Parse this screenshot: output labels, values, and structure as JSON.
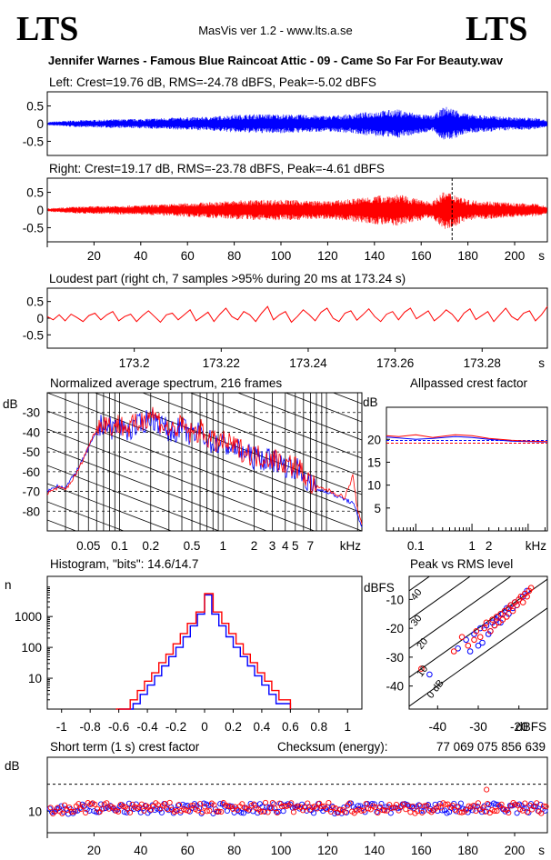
{
  "header": {
    "logo_left": "LTS",
    "logo_right": "LTS",
    "app_title": "MasVis ver 1.2 - www.lts.a.se",
    "filename": "Jennifer Warnes - Famous Blue Raincoat Attic - 09 - Came So Far For Beauty.wav"
  },
  "colors": {
    "left": "#0000ff",
    "right": "#ff0000",
    "grid": "#000000"
  },
  "chart_data": [
    {
      "id": "left",
      "type": "line",
      "title": "Left: Crest=19.76 dB, RMS=-24.78 dBFS, Peak=-5.02 dBFS",
      "ytick_labels": [
        "0.5",
        "0",
        "-0.5"
      ],
      "yticks": [
        0.5,
        0,
        -0.5
      ],
      "ylim": [
        -0.9,
        0.9
      ],
      "xlim": [
        0,
        214
      ],
      "envelope_times": [
        0,
        10,
        20,
        30,
        40,
        50,
        60,
        70,
        80,
        90,
        100,
        110,
        120,
        130,
        140,
        150,
        160,
        165,
        170,
        175,
        180,
        190,
        200,
        210,
        214
      ],
      "envelope_amp": [
        0.05,
        0.1,
        0.12,
        0.14,
        0.15,
        0.18,
        0.2,
        0.22,
        0.28,
        0.3,
        0.3,
        0.28,
        0.25,
        0.3,
        0.4,
        0.45,
        0.3,
        0.25,
        0.55,
        0.45,
        0.3,
        0.25,
        0.2,
        0.18,
        0.1
      ]
    },
    {
      "id": "right",
      "type": "line",
      "title": "Right: Crest=19.17 dB, RMS=-23.78 dBFS, Peak=-4.61 dBFS",
      "ytick_labels": [
        "0.5",
        "0",
        "-0.5"
      ],
      "yticks": [
        0.5,
        0,
        -0.5
      ],
      "ylim": [
        -0.9,
        0.9
      ],
      "xlim": [
        0,
        214
      ],
      "xtick_labels": [
        "20",
        "40",
        "60",
        "80",
        "100",
        "120",
        "140",
        "160",
        "180",
        "200"
      ],
      "xticks": [
        20,
        40,
        60,
        80,
        100,
        120,
        140,
        160,
        180,
        200
      ],
      "xunit": "s",
      "marker_time": 173.24,
      "envelope_times": [
        0,
        10,
        20,
        30,
        40,
        50,
        60,
        70,
        80,
        90,
        100,
        110,
        120,
        130,
        140,
        150,
        160,
        165,
        170,
        175,
        180,
        190,
        200,
        210,
        214
      ],
      "envelope_amp": [
        0.05,
        0.1,
        0.12,
        0.14,
        0.15,
        0.18,
        0.22,
        0.25,
        0.3,
        0.32,
        0.33,
        0.3,
        0.28,
        0.35,
        0.45,
        0.5,
        0.32,
        0.28,
        0.6,
        0.5,
        0.32,
        0.28,
        0.22,
        0.2,
        0.1
      ]
    },
    {
      "id": "loudest",
      "type": "line",
      "title": "Loudest part (right ch, 7 samples >95% during 20 ms at 173.24 s)",
      "ytick_labels": [
        "0.5",
        "0",
        "-0.5"
      ],
      "yticks": [
        0.5,
        0,
        -0.5
      ],
      "ylim": [
        -0.9,
        0.9
      ],
      "xlim": [
        173.18,
        173.295
      ],
      "xtick_labels": [
        "173.2",
        "173.22",
        "173.24",
        "173.26",
        "173.28"
      ],
      "xticks": [
        173.2,
        173.22,
        173.24,
        173.26,
        173.28
      ],
      "xunit": "s",
      "y": [
        0.05,
        -0.05,
        0.1,
        -0.08,
        0.12,
        0.02,
        -0.1,
        0.08,
        0.15,
        -0.05,
        0.1,
        0.2,
        -0.08,
        0.05,
        0.12,
        -0.1,
        0.08,
        0.22,
        0.05,
        -0.12,
        0.1,
        0.15,
        -0.05,
        0.1,
        0.25,
        -0.08,
        0.05,
        0.18,
        -0.1,
        0.12,
        0.3,
        0.05,
        -0.05,
        0.2,
        0.1,
        -0.1,
        0.15,
        0.35,
        -0.05,
        0.1,
        0.2,
        -0.12,
        0.05,
        0.25,
        0.1,
        -0.08,
        0.18,
        0.3,
        0.0,
        -0.1,
        0.15,
        0.22,
        -0.06,
        0.1,
        0.28,
        0.05,
        -0.1,
        0.12,
        0.2,
        -0.05,
        0.18,
        0.3,
        -0.02,
        0.1,
        0.22,
        -0.08,
        0.06,
        0.25,
        0.12,
        -0.1,
        0.15,
        0.28,
        -0.04,
        0.08,
        0.2,
        -0.1,
        0.1,
        0.3,
        0.05,
        -0.06,
        0.15,
        0.22,
        -0.08,
        0.1,
        0.35
      ]
    },
    {
      "id": "spectrum",
      "type": "line",
      "title": "Normalized average spectrum, 216 frames",
      "ylabel": "dB",
      "ytick_labels": [
        "-30",
        "-40",
        "-50",
        "-60",
        "-70",
        "-80"
      ],
      "yticks": [
        -30,
        -40,
        -50,
        -60,
        -70,
        -80
      ],
      "ylim": [
        -90,
        -20
      ],
      "xscale": "log",
      "xlim": [
        0.02,
        22
      ],
      "xtick_labels": [
        "0.05",
        "0.1",
        "0.2",
        "0.5",
        "1",
        "2",
        "3",
        "4",
        "5",
        "7"
      ],
      "xticks": [
        0.05,
        0.1,
        0.2,
        0.5,
        1,
        2,
        3,
        4,
        5,
        7
      ],
      "xunit": "kHz",
      "x": [
        0.02,
        0.025,
        0.03,
        0.04,
        0.05,
        0.06,
        0.07,
        0.08,
        0.1,
        0.12,
        0.15,
        0.2,
        0.25,
        0.3,
        0.4,
        0.5,
        0.6,
        0.8,
        1,
        1.5,
        2,
        3,
        4,
        5,
        6,
        7,
        8,
        10,
        12,
        15,
        18,
        20,
        22
      ],
      "series": [
        {
          "name": "left",
          "values": [
            -70,
            -67,
            -68,
            -58,
            -48,
            -40,
            -35,
            -38,
            -37,
            -39,
            -37,
            -32,
            -36,
            -40,
            -38,
            -42,
            -40,
            -46,
            -46,
            -50,
            -53,
            -54,
            -57,
            -58,
            -62,
            -67,
            -69,
            -70,
            -72,
            -74,
            -76,
            -82,
            -88
          ]
        },
        {
          "name": "right",
          "values": [
            -71,
            -68,
            -69,
            -59,
            -47,
            -38,
            -34,
            -37,
            -36,
            -38,
            -36,
            -30,
            -35,
            -39,
            -37,
            -41,
            -39,
            -45,
            -45,
            -49,
            -52,
            -53,
            -56,
            -57,
            -61,
            -66,
            -68,
            -69,
            -71,
            -73,
            -62,
            -80,
            -86
          ]
        }
      ]
    },
    {
      "id": "allpass",
      "type": "line",
      "title": "Allpassed crest factor",
      "ylabel": "dB",
      "ytick_labels": [
        "20",
        "15",
        "10",
        "5"
      ],
      "yticks": [
        20,
        15,
        10,
        5
      ],
      "ylim": [
        0,
        27
      ],
      "xscale": "log",
      "xlim": [
        0.03,
        22
      ],
      "xtick_labels": [
        "0.1",
        "1",
        "2"
      ],
      "xticks": [
        0.1,
        1,
        2
      ],
      "xunit": "kHz",
      "x": [
        0.03,
        0.05,
        0.1,
        0.2,
        0.5,
        1,
        2,
        5,
        10,
        22
      ],
      "series": [
        {
          "name": "left",
          "values": [
            20.5,
            20.3,
            20.0,
            20.2,
            20.6,
            20.4,
            20.0,
            19.6,
            19.5,
            19.4
          ]
        },
        {
          "name": "right",
          "values": [
            20.8,
            20.6,
            21.0,
            20.4,
            21.0,
            20.8,
            20.2,
            19.8,
            19.6,
            19.5
          ]
        }
      ],
      "ref_left": 19.76,
      "ref_right": 19.17
    },
    {
      "id": "histogram",
      "type": "line",
      "title": "Histogram, \"bits\": 14.6/14.7",
      "ylabel": "n",
      "yscale": "log",
      "ytick_labels": [
        "1000",
        "100",
        "10"
      ],
      "yticks": [
        1000,
        100,
        10
      ],
      "ylim": [
        1,
        20000
      ],
      "xlim": [
        -1.1,
        1.1
      ],
      "xtick_labels": [
        "-1",
        "-0.8",
        "-0.6",
        "-0.4",
        "-0.2",
        "0",
        "0.2",
        "0.4",
        "0.6",
        "0.8",
        "1"
      ],
      "xticks": [
        -1,
        -0.8,
        -0.6,
        -0.4,
        -0.2,
        0,
        0.2,
        0.4,
        0.6,
        0.8,
        1
      ],
      "series": [
        {
          "name": "left",
          "x": [
            -0.6,
            -0.5,
            -0.45,
            -0.4,
            -0.35,
            -0.3,
            -0.25,
            -0.2,
            -0.15,
            -0.1,
            -0.05,
            0,
            0.05,
            0.1,
            0.15,
            0.2,
            0.25,
            0.3,
            0.35,
            0.4,
            0.45,
            0.5,
            0.6
          ],
          "values": [
            1,
            1.5,
            3,
            6,
            12,
            25,
            50,
            100,
            220,
            500,
            1200,
            5000,
            1200,
            500,
            220,
            100,
            50,
            25,
            12,
            6,
            3,
            1.5,
            1
          ]
        },
        {
          "name": "right",
          "x": [
            -0.62,
            -0.52,
            -0.47,
            -0.42,
            -0.37,
            -0.32,
            -0.27,
            -0.22,
            -0.17,
            -0.12,
            -0.06,
            0,
            0.06,
            0.12,
            0.17,
            0.22,
            0.27,
            0.32,
            0.37,
            0.42,
            0.47,
            0.52,
            0.6
          ],
          "values": [
            1,
            2,
            4,
            8,
            15,
            32,
            60,
            130,
            280,
            600,
            1400,
            5500,
            1400,
            600,
            280,
            130,
            60,
            32,
            15,
            8,
            4,
            2,
            1
          ]
        }
      ]
    },
    {
      "id": "peak_rms",
      "type": "scatter",
      "title": "Peak vs RMS level",
      "ylabel": "dBFS",
      "xlabel": "dBFS",
      "ytick_labels": [
        "-10",
        "-20",
        "-30",
        "-40"
      ],
      "yticks": [
        -10,
        -20,
        -30,
        -40
      ],
      "xtick_labels": [
        "-40",
        "-30",
        "-20"
      ],
      "xticks": [
        -40,
        -30,
        -20
      ],
      "xlim": [
        -47,
        -13
      ],
      "ylim": [
        -48,
        -2
      ],
      "diag_labels": [
        "40",
        "30",
        "20",
        "10",
        "0 dB"
      ],
      "diag_offsets": [
        40,
        30,
        20,
        10,
        0
      ],
      "series": [
        {
          "name": "left",
          "x": [
            -42,
            -35,
            -33,
            -32,
            -31,
            -30,
            -29.5,
            -29,
            -28,
            -27.5,
            -27,
            -26.5,
            -26,
            -25.5,
            -25,
            -24.5,
            -24,
            -23.5,
            -23,
            -22.5,
            -22,
            -21.5,
            -21,
            -20.5,
            -20,
            -19,
            -18.5,
            -18
          ],
          "y": [
            -36,
            -27,
            -24,
            -28,
            -22,
            -26,
            -20,
            -25,
            -19,
            -22,
            -21,
            -18,
            -19,
            -17,
            -16,
            -18,
            -15,
            -14,
            -13,
            -15,
            -12,
            -13,
            -11,
            -12,
            -10,
            -9,
            -8,
            -7
          ]
        },
        {
          "name": "right",
          "x": [
            -44,
            -36,
            -34,
            -32.5,
            -31,
            -30.5,
            -29.5,
            -28.5,
            -28,
            -27,
            -26.5,
            -26,
            -25.5,
            -25,
            -24.5,
            -24,
            -23.5,
            -23,
            -22.5,
            -22,
            -21.5,
            -21,
            -20.5,
            -20,
            -19.5,
            -19,
            -18.5,
            -18,
            -17.5,
            -17
          ],
          "y": [
            -34,
            -28,
            -23,
            -26,
            -24,
            -21,
            -23,
            -20,
            -18,
            -21,
            -17,
            -19,
            -16,
            -18,
            -15,
            -17,
            -14,
            -16,
            -13,
            -12,
            -14,
            -11,
            -12,
            -10,
            -9,
            -11,
            -8,
            -9,
            -7,
            -6
          ]
        }
      ]
    },
    {
      "id": "short_term",
      "type": "scatter",
      "title": "Short term (1 s) crest factor",
      "checksum_label": "Checksum (energy):",
      "checksum_value": "77 069 075 856 639",
      "ylabel": "dB",
      "ytick_labels": [
        "10"
      ],
      "yticks": [
        10
      ],
      "ref_line": 20,
      "ylim": [
        2,
        30
      ],
      "xlim": [
        0,
        214
      ],
      "xtick_labels": [
        "20",
        "40",
        "60",
        "80",
        "100",
        "120",
        "140",
        "160",
        "180",
        "200"
      ],
      "xticks": [
        20,
        40,
        60,
        80,
        100,
        120,
        140,
        160,
        180,
        200
      ],
      "xunit": "s",
      "series": [
        {
          "name": "left",
          "values_mean": 11.0
        },
        {
          "name": "right",
          "values_mean": 11.2
        }
      ],
      "outlier_time": 188,
      "outlier_value": 18
    }
  ]
}
